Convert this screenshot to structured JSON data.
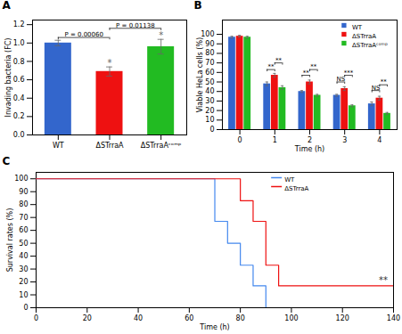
{
  "chart_data": [
    {
      "type": "bar",
      "title": "A",
      "categories": [
        "WT",
        "ΔSTrraA",
        "ΔSTrraAᶜᵒᵐᵖ"
      ],
      "values": [
        1.0,
        0.69,
        0.96
      ],
      "errors": [
        0.03,
        0.05,
        0.08
      ],
      "colors": [
        "#3366CC",
        "#EE1111",
        "#22BB22"
      ],
      "ylabel": "Invading bacteria (FC)",
      "ylim": [
        0,
        1.25
      ],
      "yticks": [
        {
          "value": 0,
          "label": "0.0"
        },
        0.2,
        0.4,
        0.6,
        0.8,
        {
          "value": 1.0,
          "label": "1.0"
        },
        1.2
      ],
      "grid": false,
      "annotations": [
        {
          "from": "WT",
          "to": "ΔSTrraA",
          "y": 1.06,
          "text": "P = 0.00060"
        },
        {
          "from": "ΔSTrraA",
          "to": "ΔSTrraAᶜᵒᵐᵖ",
          "y": 1.16,
          "text": "P = 0.01138"
        },
        {
          "category": "ΔSTrraA",
          "text": "*",
          "color": "#666666"
        },
        {
          "category": "ΔSTrraAᶜᵒᵐᵖ",
          "text": "*",
          "color": "#666666"
        }
      ]
    },
    {
      "type": "bar",
      "title": "B",
      "categories": [
        "0",
        "1",
        "2",
        "3",
        "4"
      ],
      "series": [
        {
          "name": "WT",
          "color": "#3366CC",
          "values": [
            97,
            48,
            40,
            36,
            27
          ],
          "errors": [
            1,
            2,
            1,
            1,
            2
          ]
        },
        {
          "name": "ΔSTrraA",
          "color": "#EE1111",
          "values": [
            98,
            57,
            50,
            43,
            33
          ],
          "errors": [
            1,
            2,
            2,
            2,
            2
          ]
        },
        {
          "name": "ΔSTrraAᶜᵒᵐᵖ",
          "color": "#22BB22",
          "values": [
            97,
            44,
            36,
            25,
            17
          ],
          "errors": [
            1,
            2,
            1,
            1,
            1
          ]
        }
      ],
      "xlabel": "Time (h)",
      "ylabel": "Viable HeLa cells (%)",
      "ylim": [
        0,
        115
      ],
      "yticks": [
        0,
        10,
        20,
        30,
        40,
        50,
        60,
        70,
        80,
        90,
        100
      ],
      "legend": "upper right",
      "grid": false,
      "annotations": [
        {
          "category": "1",
          "from": "WT",
          "to": "ΔSTrraA",
          "y": 63,
          "text": "**"
        },
        {
          "category": "1",
          "from": "ΔSTrraA",
          "to": "ΔSTrraAᶜᵒᵐᵖ",
          "y": 70,
          "text": "**"
        },
        {
          "category": "2",
          "from": "WT",
          "to": "ΔSTrraA",
          "y": 57,
          "text": "**"
        },
        {
          "category": "2",
          "from": "ΔSTrraA",
          "to": "ΔSTrraAᶜᵒᵐᵖ",
          "y": 63,
          "text": "**"
        },
        {
          "category": "3",
          "from": "WT",
          "to": "ΔSTrraA",
          "y": 50,
          "text": "NS"
        },
        {
          "category": "3",
          "from": "ΔSTrraA",
          "to": "ΔSTrraAᶜᵒᵐᵖ",
          "y": 57,
          "text": "***"
        },
        {
          "category": "4",
          "from": "WT",
          "to": "ΔSTrraA",
          "y": 41,
          "text": "NS"
        },
        {
          "category": "4",
          "from": "ΔSTrraA",
          "to": "ΔSTrraAᶜᵒᵐᵖ",
          "y": 47,
          "text": "**"
        }
      ]
    },
    {
      "type": "line",
      "title": "C",
      "series": [
        {
          "name": "WT",
          "color": "#4488EE",
          "x": [
            0,
            70,
            70,
            75,
            75,
            80,
            80,
            85,
            85,
            90,
            90
          ],
          "values": [
            100,
            100,
            67,
            67,
            50,
            50,
            33,
            33,
            17,
            17,
            0
          ]
        },
        {
          "name": "ΔSTrraA",
          "color": "#EE1111",
          "x": [
            0,
            80,
            80,
            85,
            85,
            90,
            90,
            95,
            95,
            140
          ],
          "values": [
            100,
            100,
            83,
            83,
            67,
            67,
            33,
            33,
            17,
            17
          ]
        }
      ],
      "xlabel": "Time (h)",
      "ylabel": "Survival rates (%)",
      "xlim": [
        0,
        140
      ],
      "ylim": [
        0,
        105
      ],
      "xticks": [
        0,
        20,
        40,
        60,
        80,
        100,
        120,
        140
      ],
      "yticks": [
        0,
        10,
        20,
        30,
        40,
        50,
        60,
        70,
        80,
        90,
        100
      ],
      "legend": "upper center",
      "grid": false,
      "annotations": [
        {
          "x": 136,
          "y": 19,
          "text": "**",
          "color": "#333333"
        }
      ]
    }
  ]
}
